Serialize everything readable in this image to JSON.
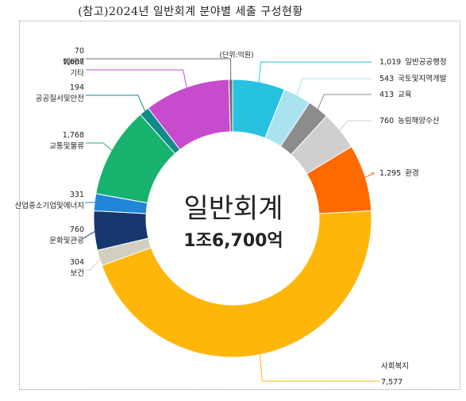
{
  "title": "(참고)2024년 일반회계 분야별 세출 구성현황",
  "chart_data": {
    "type": "pie",
    "title": "(참고)2024년 일반회계 분야별 세출 구성현황",
    "unit_note": "(단위:억원)",
    "center_title": "일반회계",
    "center_total": "1조6,700억",
    "categories": [
      "일반공공행정",
      "국토및지역개발",
      "교육",
      "농림해양수산",
      "환경",
      "사회복지",
      "보건",
      "문화및관광",
      "산업중소기업및에너지",
      "교통및물류",
      "공공질서및안전",
      "기타",
      "예비비"
    ],
    "values": [
      1019,
      543,
      413,
      760,
      1295,
      7577,
      304,
      760,
      331,
      1768,
      194,
      1667,
      70
    ],
    "value_labels": [
      "1,019",
      "543",
      "413",
      "760",
      "1,295",
      "7,577",
      "304",
      "760",
      "331",
      "1,768",
      "194",
      "1,667",
      "70"
    ],
    "colors": [
      "#26C2E0",
      "#A8E3EF",
      "#8C8C8C",
      "#CFCFCF",
      "#FF6A00",
      "#FFB60A",
      "#D2CFC2",
      "#17376F",
      "#1F86D8",
      "#17B26E",
      "#128A8A",
      "#C64CCD",
      "#6E6E6E"
    ]
  }
}
